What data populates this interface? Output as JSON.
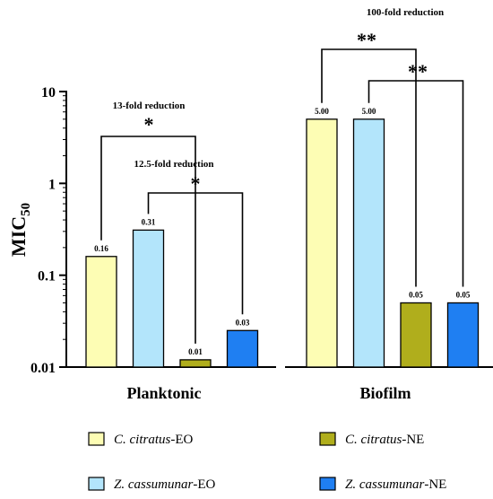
{
  "chart_data": {
    "type": "bar",
    "scale": "log",
    "ylim": [
      0.01,
      10
    ],
    "yticks": [
      "0.01",
      "0.1",
      "1",
      "10"
    ],
    "ylabel": "MIC",
    "ylabel_sub": "50",
    "categories": [
      "Planktonic",
      "Biofilm"
    ],
    "series": [
      {
        "name_prefix": "C. citratus",
        "name_suffix": "-EO",
        "color": "#fdfdb4",
        "values": [
          0.16,
          5.0
        ],
        "labels": [
          "0.16",
          "5.00"
        ]
      },
      {
        "name_prefix": "Z. cassumunar",
        "name_suffix": "-EO",
        "color": "#b3e5fb",
        "values": [
          0.31,
          5.0
        ],
        "labels": [
          "0.31",
          "5.00"
        ]
      },
      {
        "name_prefix": "C. citratus",
        "name_suffix": "-NE",
        "color": "#b0ae1c",
        "values": [
          0.012,
          0.05
        ],
        "labels": [
          "0.01",
          "0.05"
        ]
      },
      {
        "name_prefix": "Z. cassumunar",
        "name_suffix": "-NE",
        "color": "#1f7ff2",
        "values": [
          0.025,
          0.05
        ],
        "labels": [
          "0.03",
          "0.05"
        ]
      }
    ],
    "annotations": [
      {
        "text": "13-fold reduction",
        "stars": "*"
      },
      {
        "text": "12.5-fold   reduction",
        "stars": "*"
      },
      {
        "text": "100-fold reduction",
        "stars": "**"
      },
      {
        "text": "",
        "stars": "**"
      }
    ],
    "legend_placement": "bottom"
  }
}
